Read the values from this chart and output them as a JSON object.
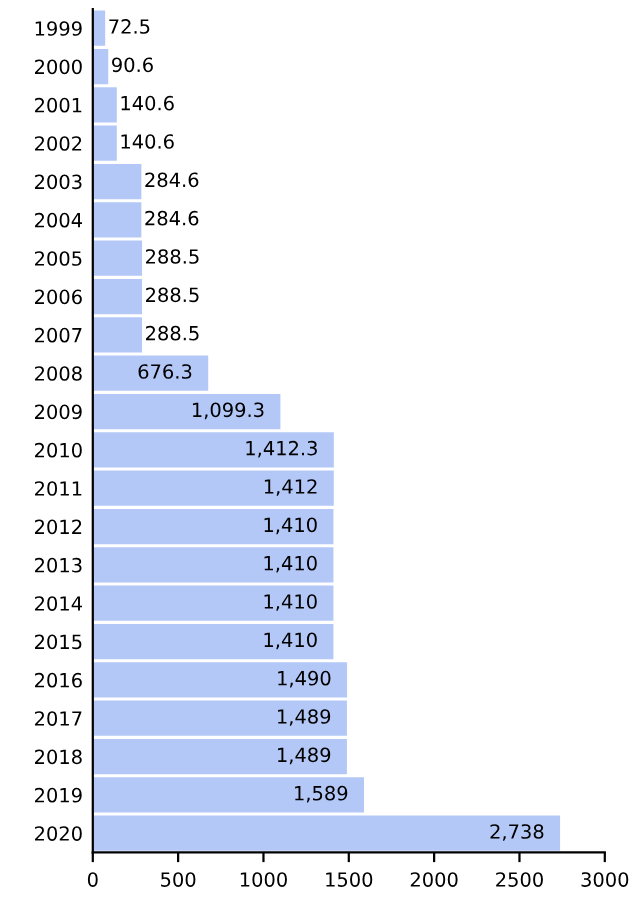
{
  "chart_data": {
    "type": "bar",
    "orientation": "horizontal",
    "categories": [
      "1999",
      "2000",
      "2001",
      "2002",
      "2003",
      "2004",
      "2005",
      "2006",
      "2007",
      "2008",
      "2009",
      "2010",
      "2011",
      "2012",
      "2013",
      "2014",
      "2015",
      "2016",
      "2017",
      "2018",
      "2019",
      "2020"
    ],
    "values": [
      72.5,
      90.6,
      140.6,
      140.6,
      284.6,
      284.6,
      288.5,
      288.5,
      288.5,
      676.3,
      1099.3,
      1412.3,
      1412,
      1410,
      1410,
      1410,
      1410,
      1490,
      1489,
      1489,
      1589,
      2738
    ],
    "value_labels": [
      "72.5",
      "90.6",
      "140.6",
      "140.6",
      "284.6",
      "284.6",
      "288.5",
      "288.5",
      "288.5",
      "676.3",
      "1,099.3",
      "1,412.3",
      "1,412",
      "1,410",
      "1,410",
      "1,410",
      "1,410",
      "1,490",
      "1,489",
      "1,489",
      "1,589",
      "2,738"
    ],
    "color": "#b3c8f7",
    "xlim": [
      0,
      3000
    ],
    "xticks": [
      0,
      500,
      1000,
      1500,
      2000,
      2500,
      3000
    ],
    "grid": false
  }
}
